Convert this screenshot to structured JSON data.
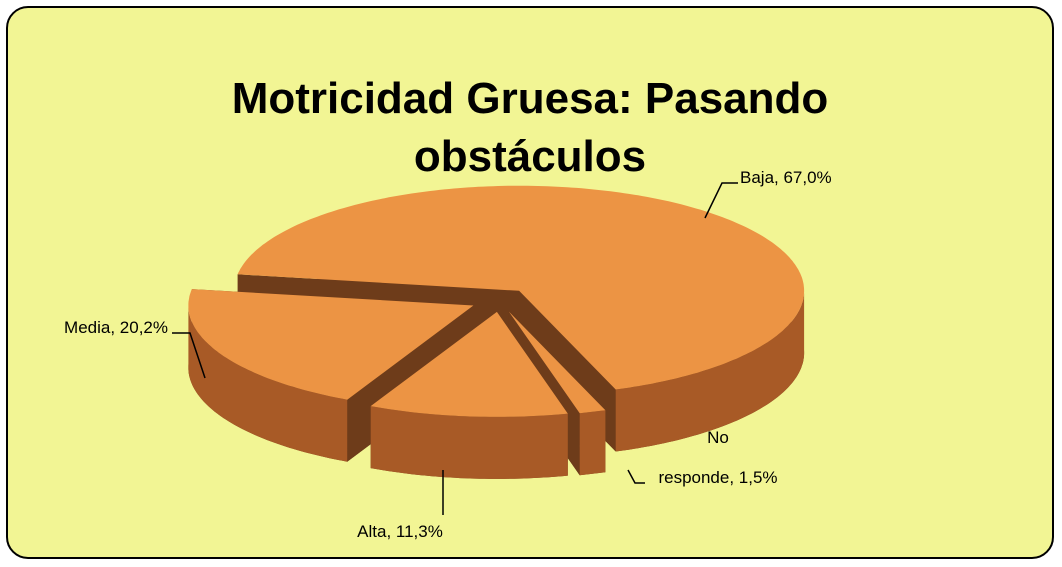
{
  "chart_data": {
    "type": "pie3d",
    "title": "Motricidad Gruesa: Pasando obstáculos",
    "values": [
      67.0,
      1.5,
      11.3,
      20.2
    ],
    "value_labels": [
      "Baja, 67,0%",
      "No responde, 1,5%",
      "Alta, 11,3%",
      "Media, 20,2%"
    ],
    "color": "#ec9444",
    "side_color": "#a85a26",
    "inner_color": "#6e3c1a"
  }
}
